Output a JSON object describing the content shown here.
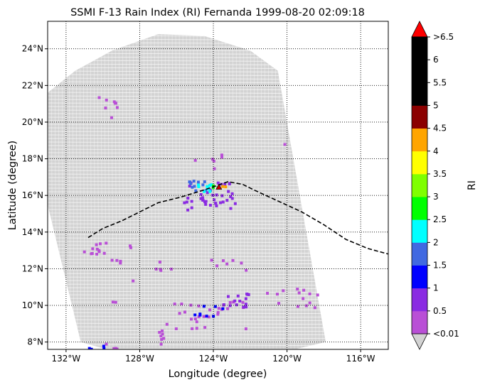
{
  "chart_data": {
    "type": "map",
    "title": "SSMI F-13 Rain Index (RI) Fernanda 1999-08-20 02:09:18",
    "xlabel": "Longitude (degree)",
    "ylabel": "Latitude (degree)",
    "xlim": [
      -133.0,
      -114.5
    ],
    "ylim": [
      7.6,
      25.5
    ],
    "xticks": [
      {
        "value": -132,
        "label": "132°W"
      },
      {
        "value": -128,
        "label": "128°W"
      },
      {
        "value": -124,
        "label": "124°W"
      },
      {
        "value": -120,
        "label": "120°W"
      },
      {
        "value": -116,
        "label": "116°W"
      }
    ],
    "yticks": [
      {
        "value": 8,
        "label": "8°N"
      },
      {
        "value": 10,
        "label": "10°N"
      },
      {
        "value": 12,
        "label": "12°N"
      },
      {
        "value": 14,
        "label": "14°N"
      },
      {
        "value": 16,
        "label": "16°N"
      },
      {
        "value": 18,
        "label": "18°N"
      },
      {
        "value": 20,
        "label": "20°N"
      },
      {
        "value": 22,
        "label": "22°N"
      },
      {
        "value": 24,
        "label": "24°N"
      }
    ],
    "grid": true,
    "swath_polygon": [
      [
        -133.0,
        21.6
      ],
      [
        -131.5,
        22.8
      ],
      [
        -129.5,
        23.9
      ],
      [
        -127.0,
        24.8
      ],
      [
        -124.5,
        24.7
      ],
      [
        -122.0,
        23.9
      ],
      [
        -120.5,
        22.8
      ],
      [
        -117.9,
        8.0
      ],
      [
        -119.6,
        7.6
      ],
      [
        -129.8,
        7.6
      ],
      [
        -131.2,
        8.0
      ],
      [
        -133.0,
        15.5
      ]
    ],
    "track": {
      "style": "dashed",
      "points": [
        [
          -130.8,
          13.7
        ],
        [
          -130.0,
          14.2
        ],
        [
          -129.0,
          14.6
        ],
        [
          -128.0,
          15.1
        ],
        [
          -127.0,
          15.6
        ],
        [
          -125.8,
          15.9
        ],
        [
          -124.5,
          16.3
        ],
        [
          -123.2,
          16.75
        ],
        [
          -122.4,
          16.6
        ],
        [
          -121.8,
          16.3
        ],
        [
          -120.5,
          15.7
        ],
        [
          -119.2,
          15.1
        ],
        [
          -118.0,
          14.4
        ],
        [
          -116.8,
          13.6
        ],
        [
          -115.6,
          13.1
        ],
        [
          -114.5,
          12.8
        ]
      ]
    },
    "storm_marker": {
      "lon": -123.7,
      "lat": 16.45
    },
    "rain_pixels": [
      {
        "lon_range": [
          -130.2,
          -129.0
        ],
        "lat_range": [
          20.6,
          21.4
        ],
        "ri": 0.2,
        "n": 7
      },
      {
        "lon_range": [
          -129.6,
          -129.4
        ],
        "lat_range": [
          20.1,
          20.3
        ],
        "ri": 0.2,
        "n": 1
      },
      {
        "lon_range": [
          -125.2,
          -123.4
        ],
        "lat_range": [
          17.4,
          18.4
        ],
        "ri": 0.2,
        "n": 6
      },
      {
        "lon_range": [
          -120.3,
          -120.1
        ],
        "lat_range": [
          18.6,
          18.8
        ],
        "ri": 0.2,
        "n": 1
      },
      {
        "lon_range": [
          -125.6,
          -122.8
        ],
        "lat_range": [
          15.2,
          16.8
        ],
        "ri": 0.7,
        "n": 40
      },
      {
        "lon_range": [
          -125.3,
          -124.0
        ],
        "lat_range": [
          16.1,
          16.8
        ],
        "ri": 1.8,
        "n": 12
      },
      {
        "lon_range": [
          -124.9,
          -124.1
        ],
        "lat_range": [
          16.2,
          16.6
        ],
        "ri": 2.3,
        "n": 8
      },
      {
        "lon_range": [
          -124.1,
          -123.7
        ],
        "lat_range": [
          16.3,
          16.6
        ],
        "ri": 2.8,
        "n": 3
      },
      {
        "lon_range": [
          -123.6,
          -123.3
        ],
        "lat_range": [
          16.3,
          16.6
        ],
        "ri": 4.2,
        "n": 2
      },
      {
        "lon_range": [
          -131.3,
          -129.8
        ],
        "lat_range": [
          12.7,
          13.4
        ],
        "ri": 0.2,
        "n": 12
      },
      {
        "lon_range": [
          -129.8,
          -128.8
        ],
        "lat_range": [
          12.3,
          12.6
        ],
        "ri": 0.2,
        "n": 4
      },
      {
        "lon_range": [
          -128.6,
          -128.2
        ],
        "lat_range": [
          13.1,
          13.3
        ],
        "ri": 0.2,
        "n": 2
      },
      {
        "lon_range": [
          -127.3,
          -122.0
        ],
        "lat_range": [
          11.9,
          12.5
        ],
        "ri": 0.2,
        "n": 12
      },
      {
        "lon_range": [
          -128.4,
          -128.2
        ],
        "lat_range": [
          11.2,
          11.4
        ],
        "ri": 0.2,
        "n": 1
      },
      {
        "lon_range": [
          -129.5,
          -129.3
        ],
        "lat_range": [
          10.0,
          10.4
        ],
        "ri": 0.2,
        "n": 2
      },
      {
        "lon_range": [
          -126.8,
          -122.2
        ],
        "lat_range": [
          8.6,
          10.2
        ],
        "ri": 0.2,
        "n": 30
      },
      {
        "lon_range": [
          -123.8,
          -122.0
        ],
        "lat_range": [
          9.8,
          10.8
        ],
        "ri": 0.7,
        "n": 14
      },
      {
        "lon_range": [
          -125.0,
          -123.4
        ],
        "lat_range": [
          9.4,
          10.0
        ],
        "ri": 1.2,
        "n": 8
      },
      {
        "lon_range": [
          -121.2,
          -118.2
        ],
        "lat_range": [
          9.8,
          11.2
        ],
        "ri": 0.2,
        "n": 14
      },
      {
        "lon_range": [
          -127.8,
          -126.6
        ],
        "lat_range": [
          7.8,
          8.6
        ],
        "ri": 0.2,
        "n": 6
      },
      {
        "lon_range": [
          -129.9,
          -129.2
        ],
        "lat_range": [
          7.6,
          7.9
        ],
        "ri": 0.2,
        "n": 4
      },
      {
        "lon_range": [
          -130.8,
          -129.9
        ],
        "lat_range": [
          7.6,
          7.8
        ],
        "ri": 1.2,
        "n": 4
      }
    ],
    "colorbar": {
      "label": "RI",
      "extend": "both",
      "under_color": "#d3d3d3",
      "over_color": "#ff0000",
      "bins": [
        {
          "lower": 0.01,
          "upper": 0.5,
          "color": "#b94fd6"
        },
        {
          "lower": 0.5,
          "upper": 1.0,
          "color": "#8a2be2"
        },
        {
          "lower": 1.0,
          "upper": 1.5,
          "color": "#0000ff"
        },
        {
          "lower": 1.5,
          "upper": 2.0,
          "color": "#4169e1"
        },
        {
          "lower": 2.0,
          "upper": 2.5,
          "color": "#00ffff"
        },
        {
          "lower": 2.5,
          "upper": 3.0,
          "color": "#00ff00"
        },
        {
          "lower": 3.0,
          "upper": 3.5,
          "color": "#7fff00"
        },
        {
          "lower": 3.5,
          "upper": 4.0,
          "color": "#ffff00"
        },
        {
          "lower": 4.0,
          "upper": 4.5,
          "color": "#ffa500"
        },
        {
          "lower": 4.5,
          "upper": 5.0,
          "color": "#8b0000"
        },
        {
          "lower": 5.0,
          "upper": 5.5,
          "color": "#000000"
        },
        {
          "lower": 5.5,
          "upper": 6.0,
          "color": "#000000"
        },
        {
          "lower": 6.0,
          "upper": 6.5,
          "color": "#000000"
        }
      ],
      "tick_labels": [
        "<0.01",
        "0.5",
        "1",
        "1.5",
        "2",
        "2.5",
        "3",
        "3.5",
        "4",
        "4.5",
        "5",
        "5.5",
        "6",
        ">6.5"
      ]
    }
  }
}
